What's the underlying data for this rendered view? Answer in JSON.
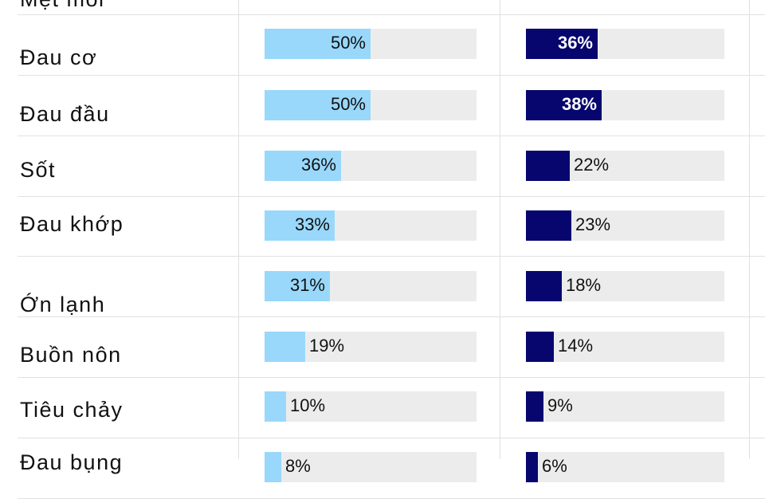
{
  "chart_data": {
    "type": "bar",
    "orientation": "horizontal",
    "categories": [
      "Mệt mỏi",
      "Đau cơ",
      "Đau đầu",
      "Sốt",
      "Đau khớp",
      "Ớn lạnh",
      "Buồn nôn",
      "Tiêu chảy",
      "Đau bụng"
    ],
    "series": [
      {
        "color": "#99d8fb",
        "values": [
          null,
          50,
          50,
          36,
          33,
          31,
          19,
          10,
          8
        ],
        "labels": [
          "",
          "50%",
          "50%",
          "36%",
          "33%",
          "31%",
          "19%",
          "10%",
          "8%"
        ]
      },
      {
        "color": "#06066e",
        "values": [
          null,
          36,
          38,
          22,
          23,
          18,
          14,
          9,
          6
        ],
        "labels": [
          "",
          "36%",
          "38%",
          "22%",
          "23%",
          "18%",
          "14%",
          "9%",
          "6%"
        ]
      }
    ],
    "xlim": [
      0,
      100
    ],
    "track_color": "#ececec",
    "grid": false,
    "legend": "none",
    "title": ""
  }
}
